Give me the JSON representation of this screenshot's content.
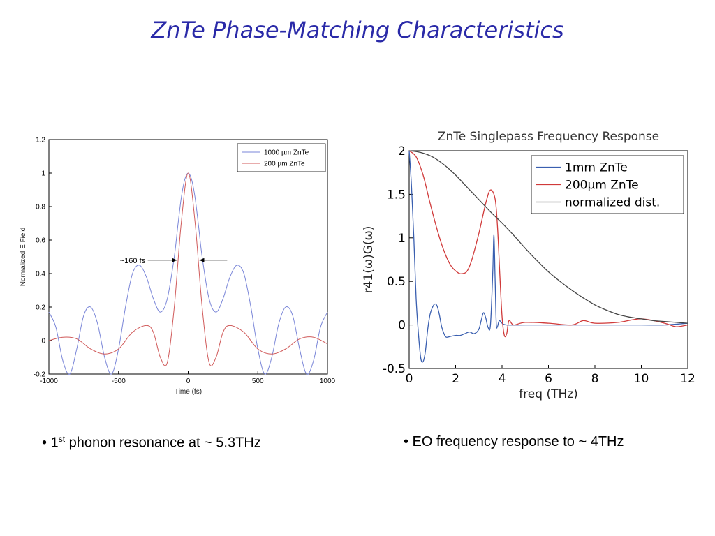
{
  "slide": {
    "title": "ZnTe Phase-Matching Characteristics",
    "bullets": [
      {
        "prefix": "• 1",
        "sup": "st",
        "text": " phonon resonance at ~ 5.3THz"
      },
      {
        "text": "• EO frequency response to ~ 4THz"
      }
    ]
  },
  "chart_data": [
    {
      "type": "line",
      "title": "",
      "xlabel": "Time (fs)",
      "ylabel": "Normalized E Field",
      "xlim": [
        -1000,
        1000
      ],
      "ylim": [
        -0.2,
        1.2
      ],
      "xticks": [
        "-1000",
        "-500",
        "0",
        "500",
        "1000"
      ],
      "yticks": [
        "-0.2",
        "0",
        "0.2",
        "0.4",
        "0.6",
        "0.8",
        "1",
        "1.2"
      ],
      "legend_position": "top-right",
      "annotation": "~160 fs",
      "series": [
        {
          "name": "1000 µm ZnTe",
          "color": "#7a86d8",
          "x": [
            -1000,
            -950,
            -900,
            -850,
            -800,
            -750,
            -700,
            -650,
            -600,
            -550,
            -500,
            -450,
            -400,
            -350,
            -300,
            -250,
            -200,
            -150,
            -100,
            -75,
            -50,
            -25,
            0,
            25,
            50,
            75,
            100,
            150,
            200,
            250,
            300,
            350,
            400,
            450,
            500,
            550,
            600,
            650,
            700,
            750,
            800,
            850,
            900,
            950,
            1000
          ],
          "y": [
            0.17,
            0.08,
            -0.12,
            -0.2,
            -0.05,
            0.15,
            0.2,
            0.1,
            -0.1,
            -0.2,
            -0.05,
            0.2,
            0.4,
            0.45,
            0.38,
            0.25,
            0.17,
            0.25,
            0.5,
            0.68,
            0.85,
            0.96,
            1.0,
            0.96,
            0.85,
            0.68,
            0.5,
            0.25,
            0.17,
            0.25,
            0.38,
            0.45,
            0.4,
            0.2,
            -0.05,
            -0.2,
            -0.1,
            0.1,
            0.2,
            0.15,
            -0.05,
            -0.2,
            -0.12,
            0.08,
            0.17
          ]
        },
        {
          "name": "200 µm ZnTe",
          "color": "#d05a5a",
          "x": [
            -1000,
            -900,
            -800,
            -700,
            -600,
            -500,
            -400,
            -300,
            -250,
            -200,
            -150,
            -100,
            -50,
            0,
            50,
            100,
            150,
            200,
            250,
            300,
            400,
            500,
            600,
            700,
            800,
            900,
            1000
          ],
          "y": [
            0,
            0.02,
            0.01,
            -0.05,
            -0.08,
            -0.05,
            0.05,
            0.09,
            0.05,
            -0.1,
            -0.13,
            0.2,
            0.7,
            1.0,
            0.7,
            0.2,
            -0.13,
            -0.1,
            0.05,
            0.09,
            0.05,
            -0.05,
            -0.08,
            -0.05,
            0.01,
            0.02,
            -0.02
          ]
        }
      ]
    },
    {
      "type": "line",
      "title": "ZnTe Singlepass Frequency Response",
      "xlabel": "freq (THz)",
      "ylabel": "r41(ω)G(ω)",
      "xlim": [
        0,
        12
      ],
      "ylim": [
        -0.5,
        2
      ],
      "xticks": [
        "0",
        "2",
        "4",
        "6",
        "8",
        "10",
        "12"
      ],
      "yticks": [
        "-0.5",
        "0",
        "0.5",
        "1",
        "1.5",
        "2"
      ],
      "legend_position": "top-right",
      "grid": false,
      "series": [
        {
          "name": "1mm ZnTe",
          "color": "#3a5fb0",
          "x": [
            0,
            0.1,
            0.2,
            0.3,
            0.4,
            0.5,
            0.6,
            0.7,
            0.8,
            0.9,
            1.0,
            1.1,
            1.2,
            1.3,
            1.4,
            1.5,
            1.6,
            1.8,
            2.0,
            2.2,
            2.4,
            2.6,
            2.8,
            3.0,
            3.1,
            3.2,
            3.3,
            3.4,
            3.5,
            3.6,
            3.65,
            3.7,
            3.75,
            3.8,
            3.85,
            3.9,
            4.0,
            4.2,
            5,
            6,
            7,
            8,
            9,
            10,
            11,
            12
          ],
          "y": [
            2.0,
            1.6,
            1.0,
            0.3,
            -0.1,
            -0.38,
            -0.42,
            -0.3,
            -0.05,
            0.12,
            0.2,
            0.24,
            0.22,
            0.12,
            -0.02,
            -0.1,
            -0.14,
            -0.13,
            -0.12,
            -0.12,
            -0.1,
            -0.08,
            -0.1,
            -0.05,
            0.05,
            0.14,
            0.08,
            -0.03,
            0.0,
            0.6,
            1.03,
            0.55,
            0.02,
            -0.02,
            0.03,
            0.05,
            0.02,
            0.0,
            0.0,
            0.0,
            0.0,
            0.0,
            0.0,
            0.0,
            0.0,
            0.02
          ]
        },
        {
          "name": "200µm ZnTe",
          "color": "#d03a3a",
          "x": [
            0,
            0.3,
            0.6,
            0.9,
            1.2,
            1.5,
            1.8,
            2.1,
            2.3,
            2.5,
            2.7,
            3.0,
            3.3,
            3.5,
            3.7,
            3.8,
            3.9,
            4.0,
            4.1,
            4.2,
            4.3,
            4.5,
            5,
            6,
            7,
            7.5,
            8,
            9,
            10,
            11,
            11.5,
            12
          ],
          "y": [
            2.0,
            1.93,
            1.72,
            1.4,
            1.1,
            0.85,
            0.68,
            0.6,
            0.59,
            0.62,
            0.75,
            1.05,
            1.4,
            1.55,
            1.45,
            1.15,
            0.6,
            0.1,
            -0.12,
            -0.1,
            0.05,
            0.0,
            0.03,
            0.02,
            0.0,
            0.05,
            0.02,
            0.03,
            0.07,
            0.02,
            -0.02,
            0.0
          ]
        },
        {
          "name": "normalized dist.",
          "color": "#444444",
          "x": [
            0,
            0.5,
            1,
            1.5,
            2,
            2.5,
            3,
            3.5,
            4,
            4.5,
            5,
            5.5,
            6,
            6.5,
            7,
            7.5,
            8,
            8.5,
            9,
            9.5,
            10,
            10.5,
            11,
            11.5,
            12
          ],
          "y": [
            2.0,
            1.98,
            1.93,
            1.84,
            1.72,
            1.58,
            1.44,
            1.3,
            1.17,
            1.03,
            0.88,
            0.74,
            0.61,
            0.5,
            0.4,
            0.31,
            0.23,
            0.17,
            0.12,
            0.09,
            0.07,
            0.05,
            0.04,
            0.03,
            0.02
          ]
        }
      ]
    }
  ]
}
